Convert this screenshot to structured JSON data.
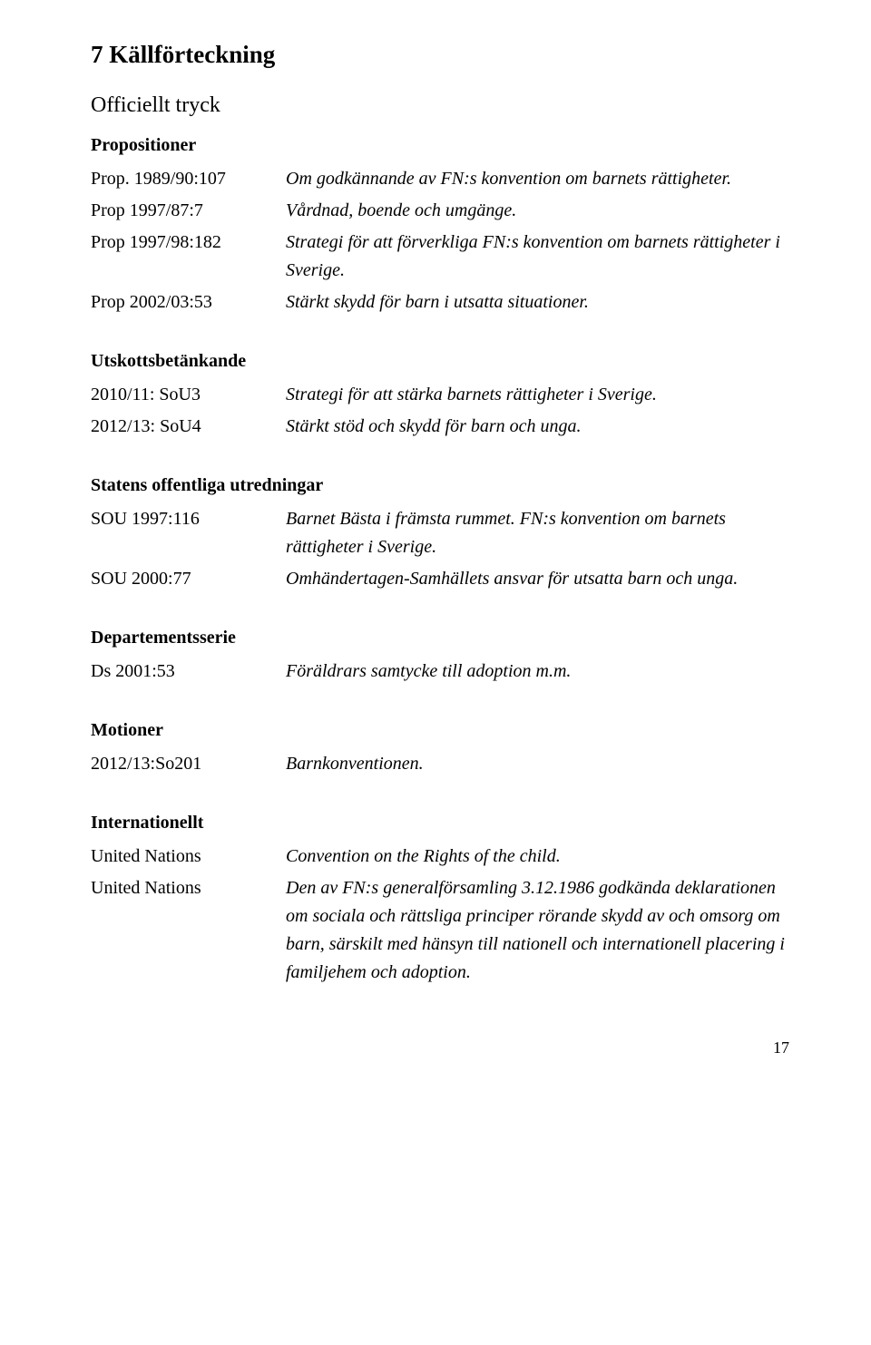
{
  "section": {
    "title": "7  Källförteckning",
    "subtitle": "Officiellt tryck"
  },
  "groups": [
    {
      "heading": "Propositioner",
      "entries": [
        {
          "key": "Prop. 1989/90:107",
          "value": "Om godkännande av FN:s konvention om barnets rättigheter."
        },
        {
          "key": "Prop 1997/87:7",
          "value": "Vårdnad, boende och umgänge."
        },
        {
          "key": "Prop 1997/98:182",
          "value": "Strategi för att förverkliga FN:s konvention om barnets rättigheter i Sverige."
        },
        {
          "key": "Prop 2002/03:53",
          "value": "Stärkt skydd för barn i utsatta situationer."
        }
      ]
    },
    {
      "heading": "Utskottsbetänkande",
      "entries": [
        {
          "key": "2010/11: SoU3",
          "value": "Strategi för att stärka barnets rättigheter i Sverige."
        },
        {
          "key": "2012/13: SoU4",
          "value": "Stärkt stöd och skydd för barn och unga."
        }
      ]
    },
    {
      "heading": "Statens offentliga utredningar",
      "entries": [
        {
          "key": "SOU 1997:116",
          "value": "Barnet Bästa i främsta rummet. FN:s konvention om barnets rättigheter i Sverige."
        },
        {
          "key": "SOU 2000:77",
          "value": "Omhändertagen-Samhällets ansvar för utsatta barn och unga."
        }
      ]
    },
    {
      "heading": "Departementsserie",
      "entries": [
        {
          "key": "Ds 2001:53",
          "value": "Föräldrars samtycke till adoption m.m."
        }
      ]
    },
    {
      "heading": "Motioner",
      "entries": [
        {
          "key": "2012/13:So201",
          "value": "Barnkonventionen."
        }
      ]
    },
    {
      "heading": "Internationellt",
      "entries": [
        {
          "key": "United Nations",
          "value": "Convention on the Rights of the child."
        },
        {
          "key": "United Nations",
          "value": "Den av FN:s generalförsamling 3.12.1986 godkända deklarationen om sociala och rättsliga principer rörande skydd av och omsorg om barn, särskilt med hänsyn till nationell och internationell placering i familjehem och adoption."
        }
      ]
    }
  ],
  "pageNumber": "17"
}
